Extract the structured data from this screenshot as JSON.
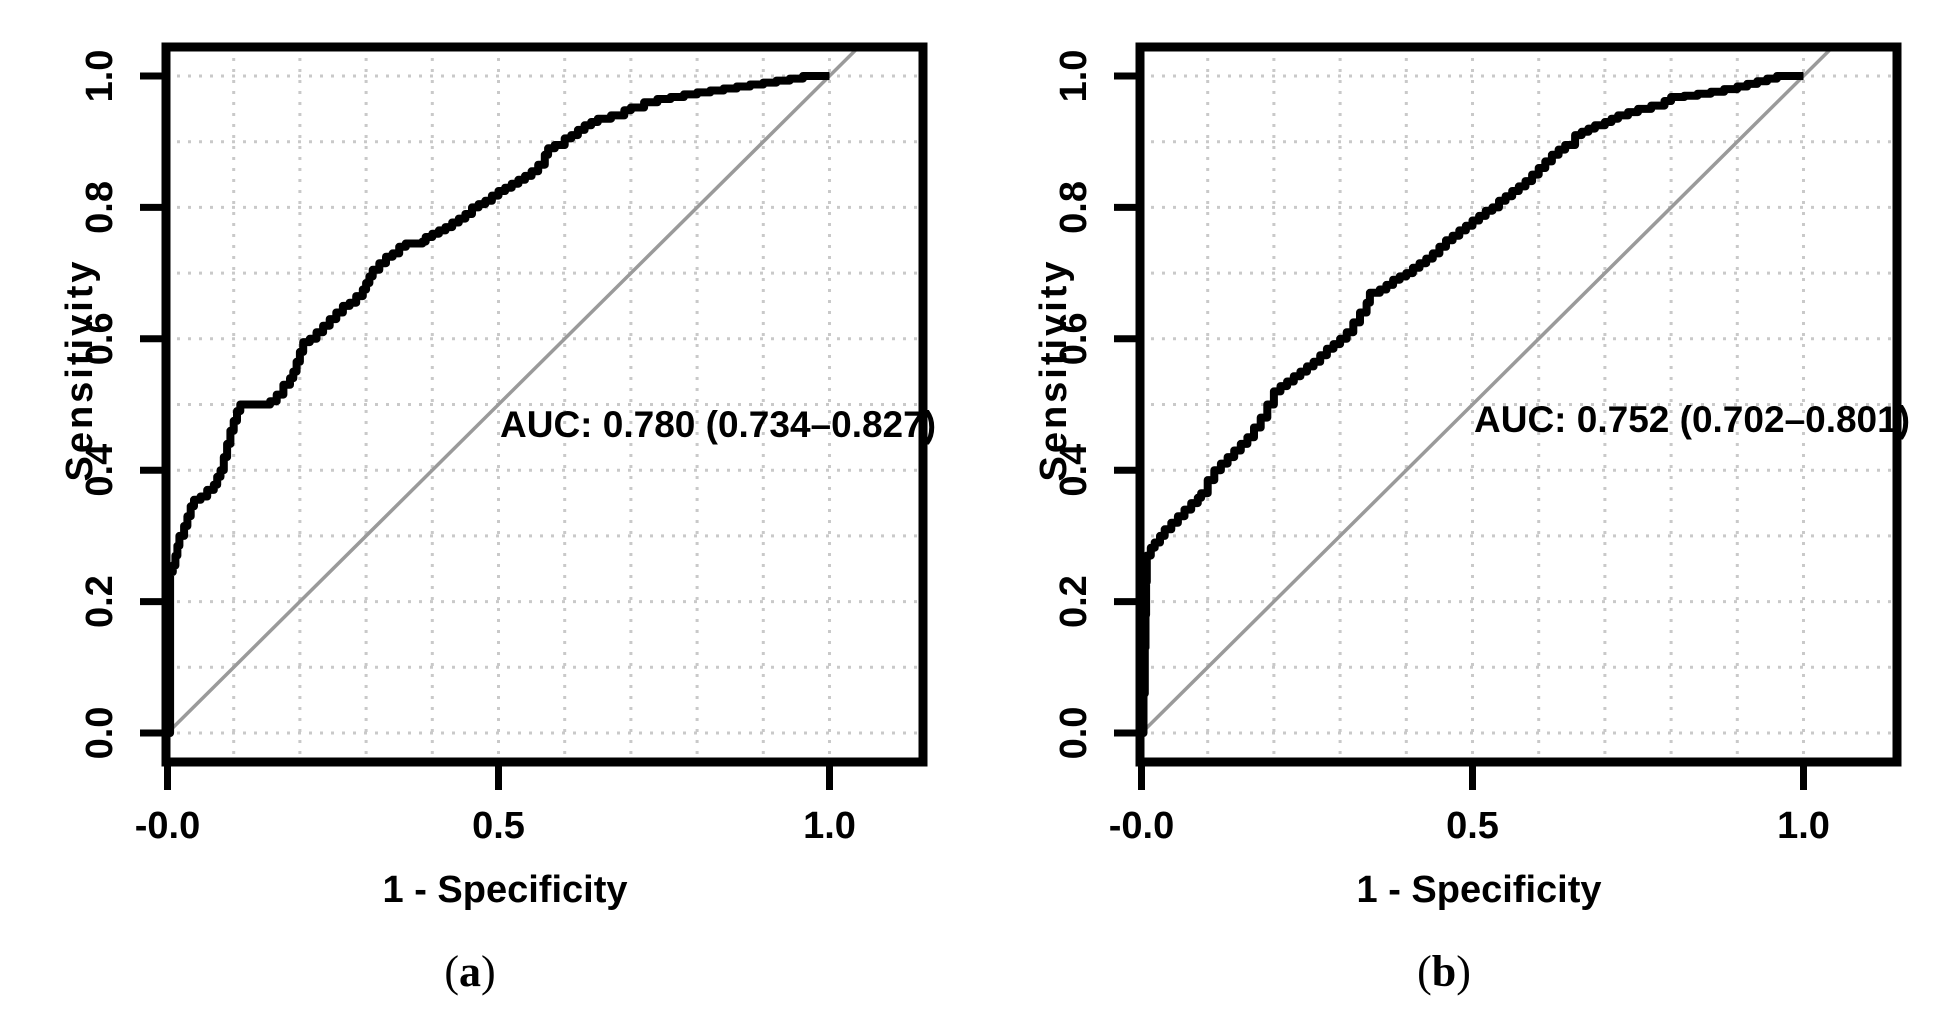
{
  "figure": {
    "background": "#ffffff",
    "colors": {
      "curve": "#000000",
      "diagonal": "#9a9a9a",
      "grid": "#c9c9c9",
      "text": "#000000",
      "box": "#000000"
    },
    "panels": [
      {
        "letter_open": "(",
        "letter": "a",
        "letter_close": ")",
        "auc_label": "AUC: 0.780 (0.734–0.827)",
        "xlabel": "1 - Specificity",
        "ylabel": "Sensitivity"
      },
      {
        "letter_open": "(",
        "letter": "b",
        "letter_close": ")",
        "auc_label": "AUC: 0.752 (0.702–0.801)",
        "xlabel": "1 - Specificity",
        "ylabel": "Sensitivity"
      }
    ]
  },
  "chart_data": [
    {
      "type": "line",
      "subtype": "roc-step-curve",
      "panel": "a",
      "title": "",
      "xlabel": "1 - Specificity",
      "ylabel": "Sensitivity",
      "xlim": [
        0,
        1
      ],
      "ylim": [
        0,
        1
      ],
      "grid_step": 0.1,
      "grid_style": "dotted",
      "diagonal_reference": true,
      "annotation": "AUC: 0.780 (0.734–0.827)",
      "auc": 0.78,
      "auc_ci": [
        0.734,
        0.827
      ],
      "x_ticks": [
        {
          "v": 0,
          "label": "-0.0"
        },
        {
          "v": 0.5,
          "label": "0.5"
        },
        {
          "v": 1,
          "label": "1.0"
        }
      ],
      "y_ticks": [
        {
          "v": 0,
          "label": "0.0"
        },
        {
          "v": 0.2,
          "label": "0.2"
        },
        {
          "v": 0.4,
          "label": "0.4"
        },
        {
          "v": 0.6,
          "label": "0.6"
        },
        {
          "v": 0.8,
          "label": "0.8"
        },
        {
          "v": 1,
          "label": "1.0"
        }
      ],
      "series": [
        {
          "name": "ROC curve (a)",
          "points": [
            [
              0,
              0
            ],
            [
              0.004,
              0.245
            ],
            [
              0.008,
              0.255
            ],
            [
              0.012,
              0.27
            ],
            [
              0.015,
              0.285
            ],
            [
              0.018,
              0.3
            ],
            [
              0.025,
              0.315
            ],
            [
              0.03,
              0.33
            ],
            [
              0.035,
              0.345
            ],
            [
              0.04,
              0.355
            ],
            [
              0.05,
              0.36
            ],
            [
              0.06,
              0.37
            ],
            [
              0.07,
              0.378
            ],
            [
              0.075,
              0.39
            ],
            [
              0.08,
              0.4
            ],
            [
              0.085,
              0.42
            ],
            [
              0.09,
              0.44
            ],
            [
              0.095,
              0.46
            ],
            [
              0.1,
              0.475
            ],
            [
              0.105,
              0.49
            ],
            [
              0.11,
              0.5
            ],
            [
              0.155,
              0.505
            ],
            [
              0.165,
              0.515
            ],
            [
              0.175,
              0.53
            ],
            [
              0.185,
              0.54
            ],
            [
              0.19,
              0.55
            ],
            [
              0.195,
              0.565
            ],
            [
              0.2,
              0.58
            ],
            [
              0.205,
              0.595
            ],
            [
              0.215,
              0.6
            ],
            [
              0.225,
              0.61
            ],
            [
              0.235,
              0.62
            ],
            [
              0.245,
              0.63
            ],
            [
              0.255,
              0.64
            ],
            [
              0.265,
              0.65
            ],
            [
              0.275,
              0.655
            ],
            [
              0.285,
              0.665
            ],
            [
              0.295,
              0.675
            ],
            [
              0.3,
              0.685
            ],
            [
              0.305,
              0.695
            ],
            [
              0.31,
              0.705
            ],
            [
              0.32,
              0.715
            ],
            [
              0.33,
              0.725
            ],
            [
              0.34,
              0.73
            ],
            [
              0.35,
              0.74
            ],
            [
              0.36,
              0.745
            ],
            [
              0.385,
              0.748
            ],
            [
              0.39,
              0.755
            ],
            [
              0.4,
              0.76
            ],
            [
              0.41,
              0.765
            ],
            [
              0.42,
              0.77
            ],
            [
              0.43,
              0.777
            ],
            [
              0.44,
              0.783
            ],
            [
              0.45,
              0.79
            ],
            [
              0.46,
              0.8
            ],
            [
              0.47,
              0.805
            ],
            [
              0.48,
              0.81
            ],
            [
              0.49,
              0.818
            ],
            [
              0.5,
              0.825
            ],
            [
              0.51,
              0.83
            ],
            [
              0.52,
              0.836
            ],
            [
              0.53,
              0.842
            ],
            [
              0.54,
              0.848
            ],
            [
              0.55,
              0.855
            ],
            [
              0.56,
              0.865
            ],
            [
              0.57,
              0.88
            ],
            [
              0.575,
              0.89
            ],
            [
              0.585,
              0.895
            ],
            [
              0.6,
              0.905
            ],
            [
              0.61,
              0.91
            ],
            [
              0.62,
              0.918
            ],
            [
              0.63,
              0.925
            ],
            [
              0.64,
              0.93
            ],
            [
              0.65,
              0.935
            ],
            [
              0.67,
              0.94
            ],
            [
              0.69,
              0.948
            ],
            [
              0.7,
              0.952
            ],
            [
              0.72,
              0.96
            ],
            [
              0.74,
              0.965
            ],
            [
              0.76,
              0.968
            ],
            [
              0.78,
              0.972
            ],
            [
              0.8,
              0.975
            ],
            [
              0.82,
              0.978
            ],
            [
              0.84,
              0.981
            ],
            [
              0.86,
              0.984
            ],
            [
              0.88,
              0.987
            ],
            [
              0.9,
              0.99
            ],
            [
              0.92,
              0.993
            ],
            [
              0.94,
              0.996
            ],
            [
              0.96,
              1
            ],
            [
              1,
              1
            ]
          ]
        }
      ]
    },
    {
      "type": "line",
      "subtype": "roc-step-curve",
      "panel": "b",
      "title": "",
      "xlabel": "1 - Specificity",
      "ylabel": "Sensitivity",
      "xlim": [
        0,
        1
      ],
      "ylim": [
        0,
        1
      ],
      "grid_step": 0.1,
      "grid_style": "dotted",
      "diagonal_reference": true,
      "annotation": "AUC: 0.752 (0.702–0.801)",
      "auc": 0.752,
      "auc_ci": [
        0.702,
        0.801
      ],
      "x_ticks": [
        {
          "v": 0,
          "label": "-0.0"
        },
        {
          "v": 0.5,
          "label": "0.5"
        },
        {
          "v": 1,
          "label": "1.0"
        }
      ],
      "y_ticks": [
        {
          "v": 0,
          "label": "0.0"
        },
        {
          "v": 0.2,
          "label": "0.2"
        },
        {
          "v": 0.4,
          "label": "0.4"
        },
        {
          "v": 0.6,
          "label": "0.6"
        },
        {
          "v": 0.8,
          "label": "0.8"
        },
        {
          "v": 1,
          "label": "1.0"
        }
      ],
      "series": [
        {
          "name": "ROC curve (b)",
          "points": [
            [
              0,
              0
            ],
            [
              0.003,
              0.06
            ],
            [
              0.005,
              0.13
            ],
            [
              0.006,
              0.18
            ],
            [
              0.007,
              0.23
            ],
            [
              0.008,
              0.27
            ],
            [
              0.014,
              0.282
            ],
            [
              0.02,
              0.29
            ],
            [
              0.028,
              0.3
            ],
            [
              0.035,
              0.31
            ],
            [
              0.045,
              0.32
            ],
            [
              0.055,
              0.33
            ],
            [
              0.065,
              0.34
            ],
            [
              0.075,
              0.35
            ],
            [
              0.085,
              0.358
            ],
            [
              0.09,
              0.365
            ],
            [
              0.1,
              0.385
            ],
            [
              0.11,
              0.4
            ],
            [
              0.12,
              0.41
            ],
            [
              0.13,
              0.42
            ],
            [
              0.14,
              0.43
            ],
            [
              0.15,
              0.44
            ],
            [
              0.16,
              0.45
            ],
            [
              0.17,
              0.465
            ],
            [
              0.18,
              0.48
            ],
            [
              0.19,
              0.5
            ],
            [
              0.2,
              0.52
            ],
            [
              0.21,
              0.528
            ],
            [
              0.22,
              0.535
            ],
            [
              0.23,
              0.543
            ],
            [
              0.24,
              0.55
            ],
            [
              0.25,
              0.558
            ],
            [
              0.26,
              0.565
            ],
            [
              0.27,
              0.575
            ],
            [
              0.28,
              0.585
            ],
            [
              0.29,
              0.592
            ],
            [
              0.3,
              0.6
            ],
            [
              0.31,
              0.61
            ],
            [
              0.32,
              0.625
            ],
            [
              0.33,
              0.64
            ],
            [
              0.34,
              0.655
            ],
            [
              0.345,
              0.67
            ],
            [
              0.36,
              0.675
            ],
            [
              0.37,
              0.682
            ],
            [
              0.38,
              0.69
            ],
            [
              0.39,
              0.695
            ],
            [
              0.4,
              0.7
            ],
            [
              0.41,
              0.708
            ],
            [
              0.42,
              0.715
            ],
            [
              0.43,
              0.722
            ],
            [
              0.44,
              0.73
            ],
            [
              0.45,
              0.74
            ],
            [
              0.46,
              0.75
            ],
            [
              0.47,
              0.757
            ],
            [
              0.48,
              0.765
            ],
            [
              0.49,
              0.772
            ],
            [
              0.5,
              0.78
            ],
            [
              0.51,
              0.787
            ],
            [
              0.52,
              0.795
            ],
            [
              0.53,
              0.8
            ],
            [
              0.54,
              0.81
            ],
            [
              0.55,
              0.817
            ],
            [
              0.56,
              0.825
            ],
            [
              0.57,
              0.832
            ],
            [
              0.58,
              0.84
            ],
            [
              0.59,
              0.85
            ],
            [
              0.6,
              0.86
            ],
            [
              0.61,
              0.87
            ],
            [
              0.62,
              0.88
            ],
            [
              0.63,
              0.888
            ],
            [
              0.64,
              0.895
            ],
            [
              0.655,
              0.91
            ],
            [
              0.665,
              0.915
            ],
            [
              0.675,
              0.92
            ],
            [
              0.685,
              0.925
            ],
            [
              0.7,
              0.93
            ],
            [
              0.71,
              0.935
            ],
            [
              0.72,
              0.94
            ],
            [
              0.735,
              0.945
            ],
            [
              0.75,
              0.95
            ],
            [
              0.77,
              0.955
            ],
            [
              0.79,
              0.962
            ],
            [
              0.8,
              0.968
            ],
            [
              0.82,
              0.97
            ],
            [
              0.84,
              0.973
            ],
            [
              0.86,
              0.976
            ],
            [
              0.88,
              0.98
            ],
            [
              0.9,
              0.984
            ],
            [
              0.915,
              0.988
            ],
            [
              0.93,
              0.992
            ],
            [
              0.945,
              0.996
            ],
            [
              0.96,
              1
            ],
            [
              1,
              1
            ]
          ]
        }
      ]
    }
  ]
}
